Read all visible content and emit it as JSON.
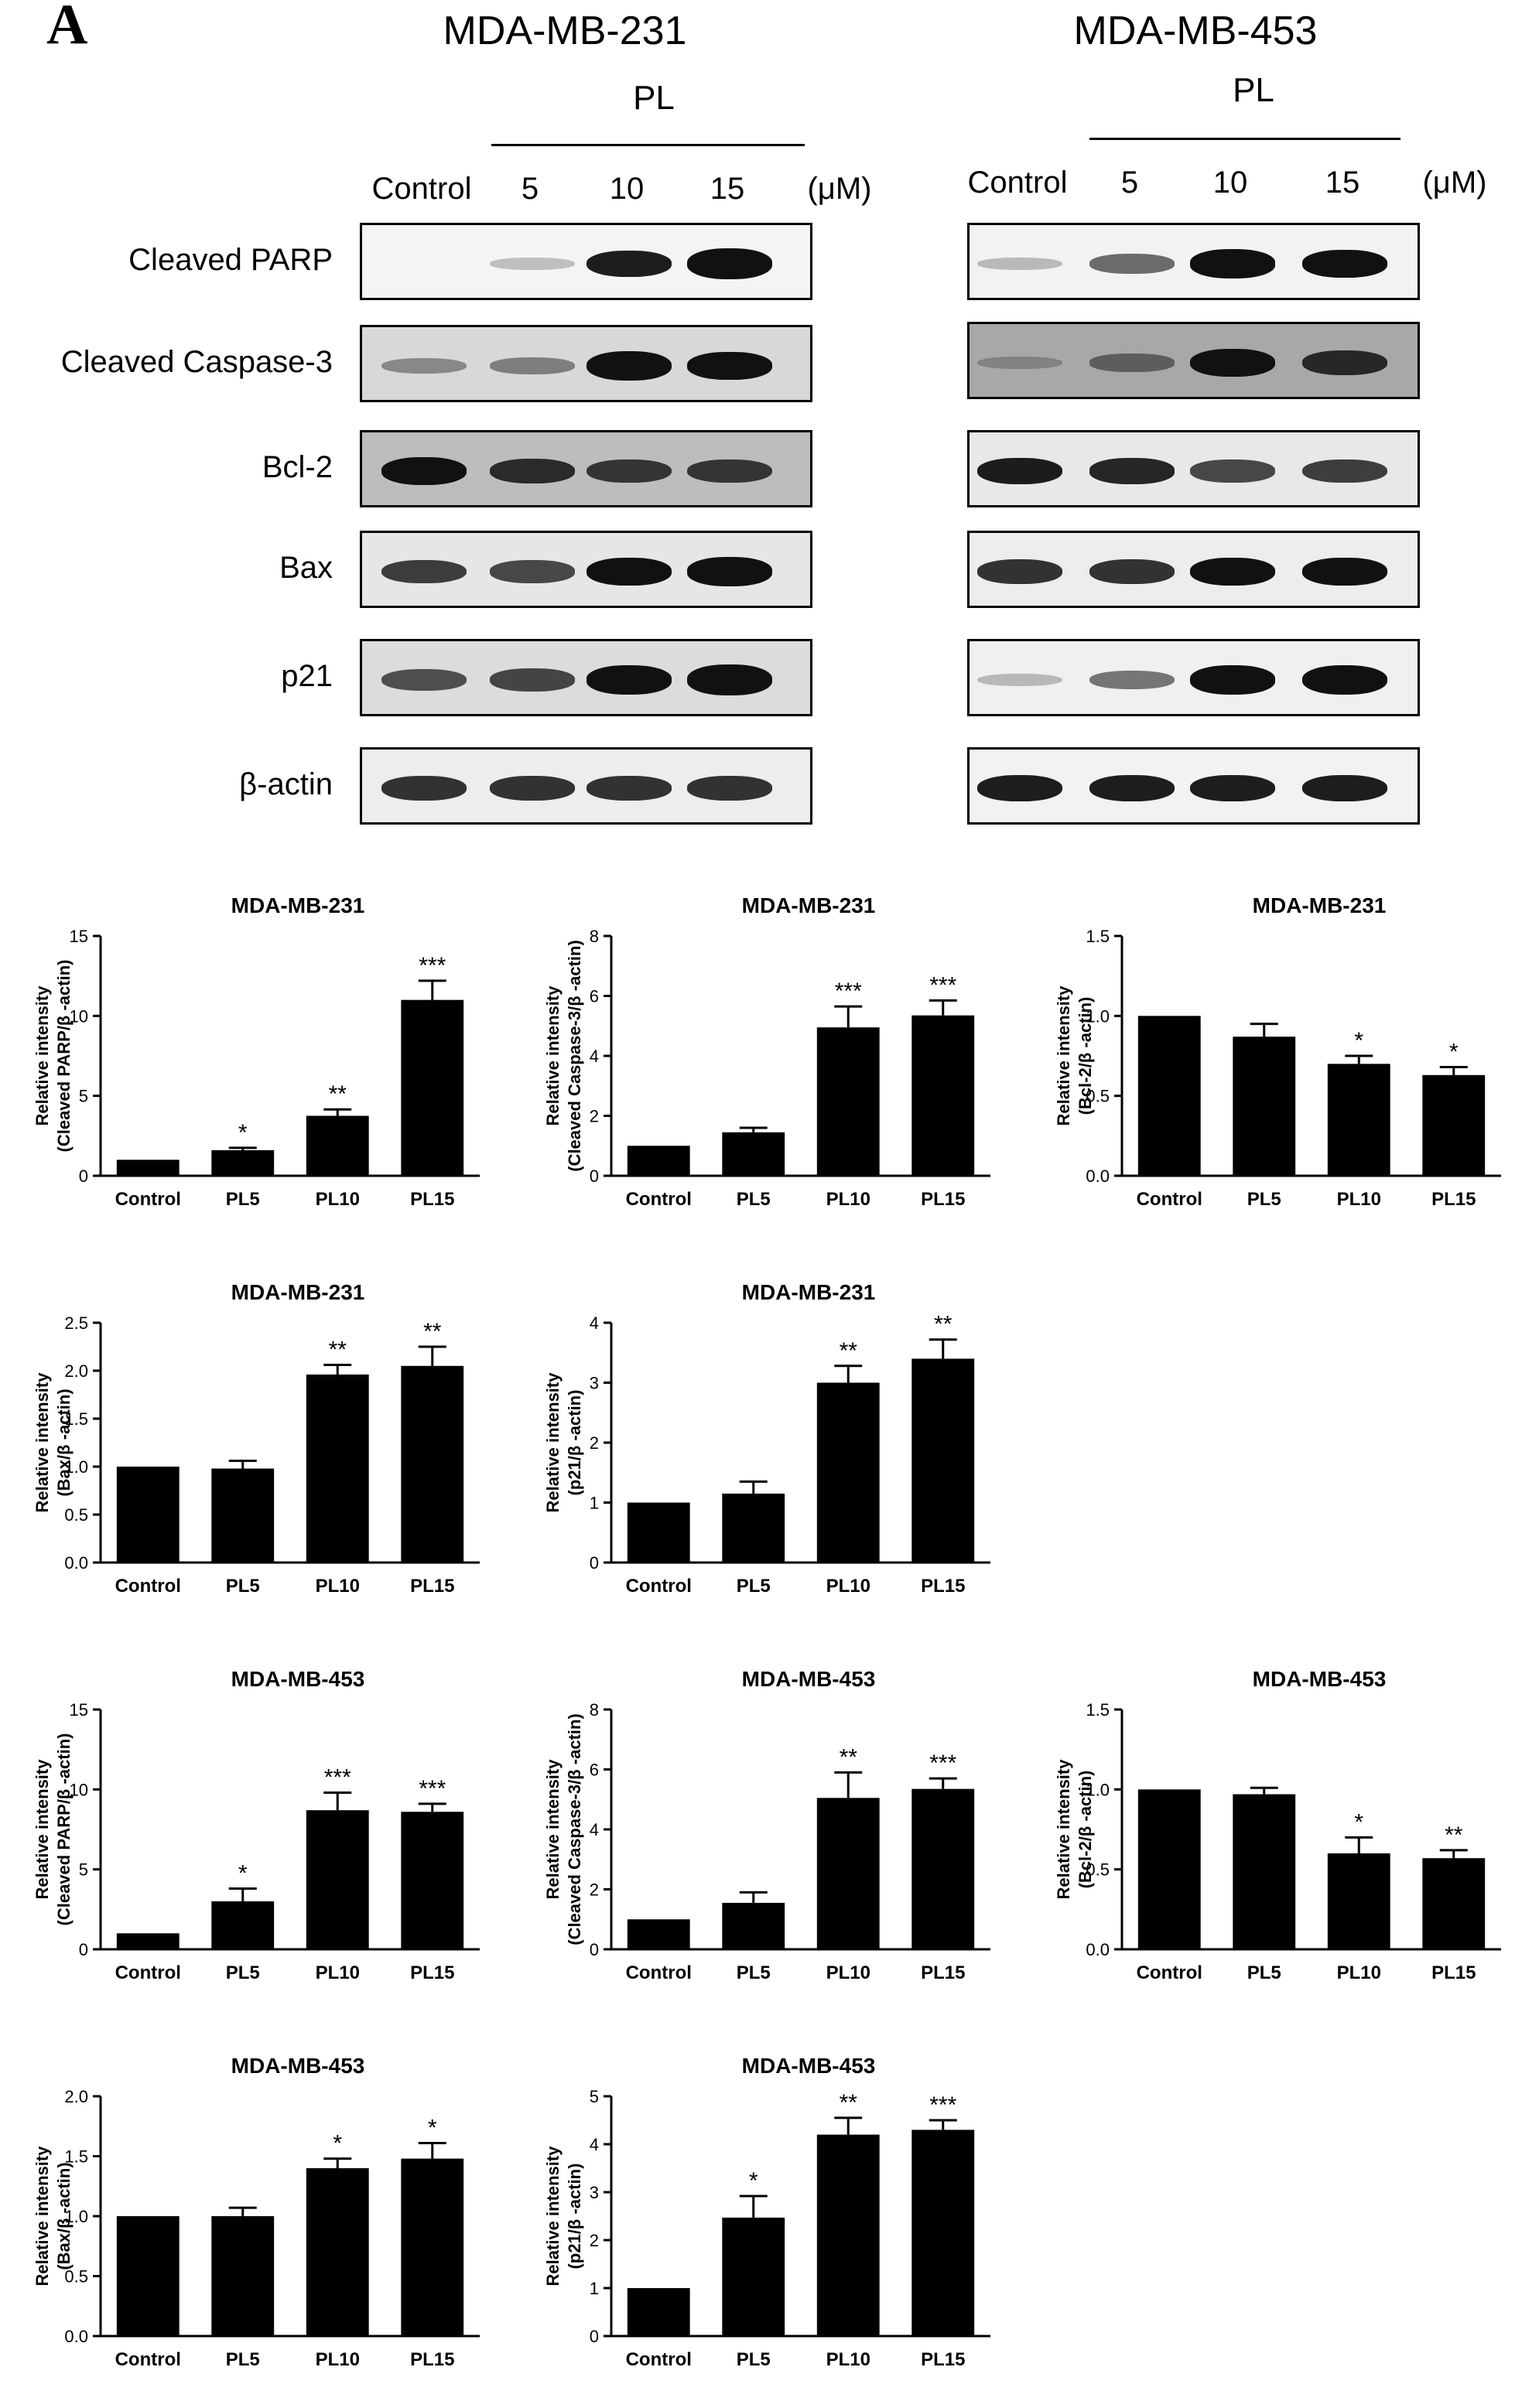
{
  "panel_label": "A",
  "western_blots": [
    {
      "cell_line": "MDA-MB-231",
      "treatment_label": "PL",
      "lanes": [
        "Control",
        "5",
        "10",
        "15"
      ],
      "unit": "(μM)",
      "rows": [
        {
          "label": "Cleaved PARP",
          "intensity": [
            0.0,
            0.08,
            0.8,
            1.0
          ],
          "background": "#f4f4f4"
        },
        {
          "label": "Cleaved Caspase-3",
          "intensity": [
            0.25,
            0.3,
            0.95,
            0.85
          ],
          "background": "#d8d8d8"
        },
        {
          "label": "Bcl-2",
          "intensity": [
            0.85,
            0.7,
            0.65,
            0.65
          ],
          "background": "#bdbdbd"
        },
        {
          "label": "Bax",
          "intensity": [
            0.65,
            0.6,
            0.85,
            0.9
          ],
          "background": "#e6e6e6"
        },
        {
          "label": "p21",
          "intensity": [
            0.55,
            0.6,
            0.9,
            1.0
          ],
          "background": "#dcdcdc"
        },
        {
          "label": "β-actin",
          "intensity": [
            0.7,
            0.7,
            0.7,
            0.7
          ],
          "background": "#ededed"
        }
      ]
    },
    {
      "cell_line": "MDA-MB-453",
      "treatment_label": "PL",
      "lanes": [
        "Control",
        "5",
        "10",
        "15"
      ],
      "unit": "(μM)",
      "rows": [
        {
          "label": "Cleaved PARP",
          "intensity": [
            0.1,
            0.45,
            0.9,
            0.85
          ],
          "background": "#f2f2f2"
        },
        {
          "label": "Cleaved Caspase-3",
          "intensity": [
            0.1,
            0.35,
            0.85,
            0.7
          ],
          "background": "#a8a8a8"
        },
        {
          "label": "Bcl-2",
          "intensity": [
            0.8,
            0.75,
            0.6,
            0.65
          ],
          "background": "#e8e8e8"
        },
        {
          "label": "Bax",
          "intensity": [
            0.7,
            0.7,
            0.85,
            0.85
          ],
          "background": "#ededed"
        },
        {
          "label": "p21",
          "intensity": [
            0.1,
            0.4,
            0.9,
            0.95
          ],
          "background": "#f0f0f0"
        },
        {
          "label": "β-actin",
          "intensity": [
            0.8,
            0.8,
            0.8,
            0.8
          ],
          "background": "#f2f2f2"
        }
      ]
    }
  ],
  "chart_data": [
    {
      "type": "bar",
      "title": "MDA-MB-231",
      "ylabel_lines": [
        "Relative intensity",
        "(Cleaved PARP/β -actin)"
      ],
      "categories": [
        "Control",
        "PL5",
        "PL10",
        "PL15"
      ],
      "values": [
        1.0,
        1.6,
        3.75,
        11.0
      ],
      "errors": [
        0,
        0.15,
        0.4,
        1.2
      ],
      "significance": [
        "",
        "*",
        "**",
        "***"
      ],
      "ylim": [
        0,
        15
      ],
      "yticks": [
        0,
        5,
        10,
        15
      ],
      "ytick_labels": [
        "0",
        "5",
        "10",
        "15"
      ]
    },
    {
      "type": "bar",
      "title": "MDA-MB-231",
      "ylabel_lines": [
        "Relative intensity",
        "(Cleaved Caspase-3/β -actin)"
      ],
      "categories": [
        "Control",
        "PL5",
        "PL10",
        "PL15"
      ],
      "values": [
        1.0,
        1.45,
        4.95,
        5.35
      ],
      "errors": [
        0,
        0.15,
        0.7,
        0.5
      ],
      "significance": [
        "",
        "",
        "***",
        "***"
      ],
      "ylim": [
        0,
        8
      ],
      "yticks": [
        0,
        2,
        4,
        6,
        8
      ],
      "ytick_labels": [
        "0",
        "2",
        "4",
        "6",
        "8"
      ]
    },
    {
      "type": "bar",
      "title": "MDA-MB-231",
      "ylabel_lines": [
        "Relative intensity",
        "(Bcl-2/β -actin)"
      ],
      "categories": [
        "Control",
        "PL5",
        "PL10",
        "PL15"
      ],
      "values": [
        1.0,
        0.87,
        0.7,
        0.63
      ],
      "errors": [
        0,
        0.08,
        0.05,
        0.05
      ],
      "significance": [
        "",
        "",
        "*",
        "*"
      ],
      "ylim": [
        0,
        1.5
      ],
      "yticks": [
        0,
        0.5,
        1.0,
        1.5
      ],
      "ytick_labels": [
        "0.0",
        "0.5",
        "1.0",
        "1.5"
      ]
    },
    {
      "type": "bar",
      "title": "MDA-MB-231",
      "ylabel_lines": [
        "Relative intensity",
        "(Bax/β -actin)"
      ],
      "categories": [
        "Control",
        "PL5",
        "PL10",
        "PL15"
      ],
      "values": [
        1.0,
        0.98,
        1.96,
        2.05
      ],
      "errors": [
        0,
        0.08,
        0.1,
        0.2
      ],
      "significance": [
        "",
        "",
        "**",
        "**"
      ],
      "ylim": [
        0,
        2.5
      ],
      "yticks": [
        0,
        0.5,
        1.0,
        1.5,
        2.0,
        2.5
      ],
      "ytick_labels": [
        "0.0",
        "0.5",
        "1.0",
        "1.5",
        "2.0",
        "2.5"
      ]
    },
    {
      "type": "bar",
      "title": "MDA-MB-231",
      "ylabel_lines": [
        "Relative intensity",
        "(p21/β -actin)"
      ],
      "categories": [
        "Control",
        "PL5",
        "PL10",
        "PL15"
      ],
      "values": [
        1.0,
        1.15,
        3.0,
        3.4
      ],
      "errors": [
        0,
        0.2,
        0.28,
        0.32
      ],
      "significance": [
        "",
        "",
        "**",
        "**"
      ],
      "ylim": [
        0,
        4
      ],
      "yticks": [
        0,
        1,
        2,
        3,
        4
      ],
      "ytick_labels": [
        "0",
        "1",
        "2",
        "3",
        "4"
      ]
    },
    {
      "type": "bar",
      "title": "MDA-MB-453",
      "ylabel_lines": [
        "Relative intensity",
        "(Cleaved PARP/β -actin)"
      ],
      "categories": [
        "Control",
        "PL5",
        "PL10",
        "PL15"
      ],
      "values": [
        1.0,
        3.0,
        8.7,
        8.6
      ],
      "errors": [
        0,
        0.8,
        1.1,
        0.5
      ],
      "significance": [
        "",
        "*",
        "***",
        "***"
      ],
      "ylim": [
        0,
        15
      ],
      "yticks": [
        0,
        5,
        10,
        15
      ],
      "ytick_labels": [
        "0",
        "5",
        "10",
        "15"
      ]
    },
    {
      "type": "bar",
      "title": "MDA-MB-453",
      "ylabel_lines": [
        "Relative intensity",
        "(Cleaved Caspase-3/β -actin)"
      ],
      "categories": [
        "Control",
        "PL5",
        "PL10",
        "PL15"
      ],
      "values": [
        1.0,
        1.55,
        5.05,
        5.35
      ],
      "errors": [
        0,
        0.35,
        0.85,
        0.35
      ],
      "significance": [
        "",
        "",
        "**",
        "***"
      ],
      "ylim": [
        0,
        8
      ],
      "yticks": [
        0,
        2,
        4,
        6,
        8
      ],
      "ytick_labels": [
        "0",
        "2",
        "4",
        "6",
        "8"
      ]
    },
    {
      "type": "bar",
      "title": "MDA-MB-453",
      "ylabel_lines": [
        "Relative intensity",
        "(Bcl-2/β -actin)"
      ],
      "categories": [
        "Control",
        "PL5",
        "PL10",
        "PL15"
      ],
      "values": [
        1.0,
        0.97,
        0.6,
        0.57
      ],
      "errors": [
        0,
        0.04,
        0.1,
        0.05
      ],
      "significance": [
        "",
        "",
        "*",
        "**"
      ],
      "ylim": [
        0,
        1.5
      ],
      "yticks": [
        0,
        0.5,
        1.0,
        1.5
      ],
      "ytick_labels": [
        "0.0",
        "0.5",
        "1.0",
        "1.5"
      ]
    },
    {
      "type": "bar",
      "title": "MDA-MB-453",
      "ylabel_lines": [
        "Relative intensity",
        "(Bax/β -actin)"
      ],
      "categories": [
        "Control",
        "PL5",
        "PL10",
        "PL15"
      ],
      "values": [
        1.0,
        1.0,
        1.4,
        1.48
      ],
      "errors": [
        0,
        0.07,
        0.08,
        0.13
      ],
      "significance": [
        "",
        "",
        "*",
        "*"
      ],
      "ylim": [
        0,
        2.0
      ],
      "yticks": [
        0,
        0.5,
        1.0,
        1.5,
        2.0
      ],
      "ytick_labels": [
        "0.0",
        "0.5",
        "1.0",
        "1.5",
        "2.0"
      ]
    },
    {
      "type": "bar",
      "title": "MDA-MB-453",
      "ylabel_lines": [
        "Relative intensity",
        "(p21/β -actin)"
      ],
      "categories": [
        "Control",
        "PL5",
        "PL10",
        "PL15"
      ],
      "values": [
        1.0,
        2.47,
        4.2,
        4.3
      ],
      "errors": [
        0,
        0.45,
        0.35,
        0.2
      ],
      "significance": [
        "",
        "*",
        "**",
        "***"
      ],
      "ylim": [
        0,
        5
      ],
      "yticks": [
        0,
        1,
        2,
        3,
        4,
        5
      ],
      "ytick_labels": [
        "0",
        "1",
        "2",
        "3",
        "4",
        "5"
      ]
    }
  ]
}
